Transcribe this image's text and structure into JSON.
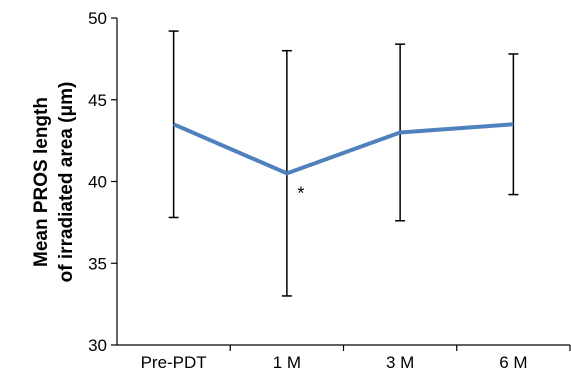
{
  "chart_data": {
    "type": "line",
    "title": "",
    "xlabel": "",
    "ylabel_lines": [
      "Mean PROS length",
      "of irradiated area (μm)"
    ],
    "categories": [
      "Pre-PDT",
      "1 M",
      "3 M",
      "6 M"
    ],
    "series": [
      {
        "values": [
          43.5,
          40.5,
          43.0,
          43.5
        ],
        "error_upper": [
          49.2,
          48.0,
          48.4,
          47.8
        ],
        "error_lower": [
          37.8,
          33.0,
          37.6,
          39.2
        ],
        "color": "#4f81bd"
      }
    ],
    "ylim": [
      30,
      50
    ],
    "yticks": [
      "30",
      "35",
      "40",
      "45",
      "50"
    ],
    "grid": false,
    "legend": "none",
    "annotations": [
      {
        "category": "1 M",
        "text": "*"
      }
    ]
  }
}
